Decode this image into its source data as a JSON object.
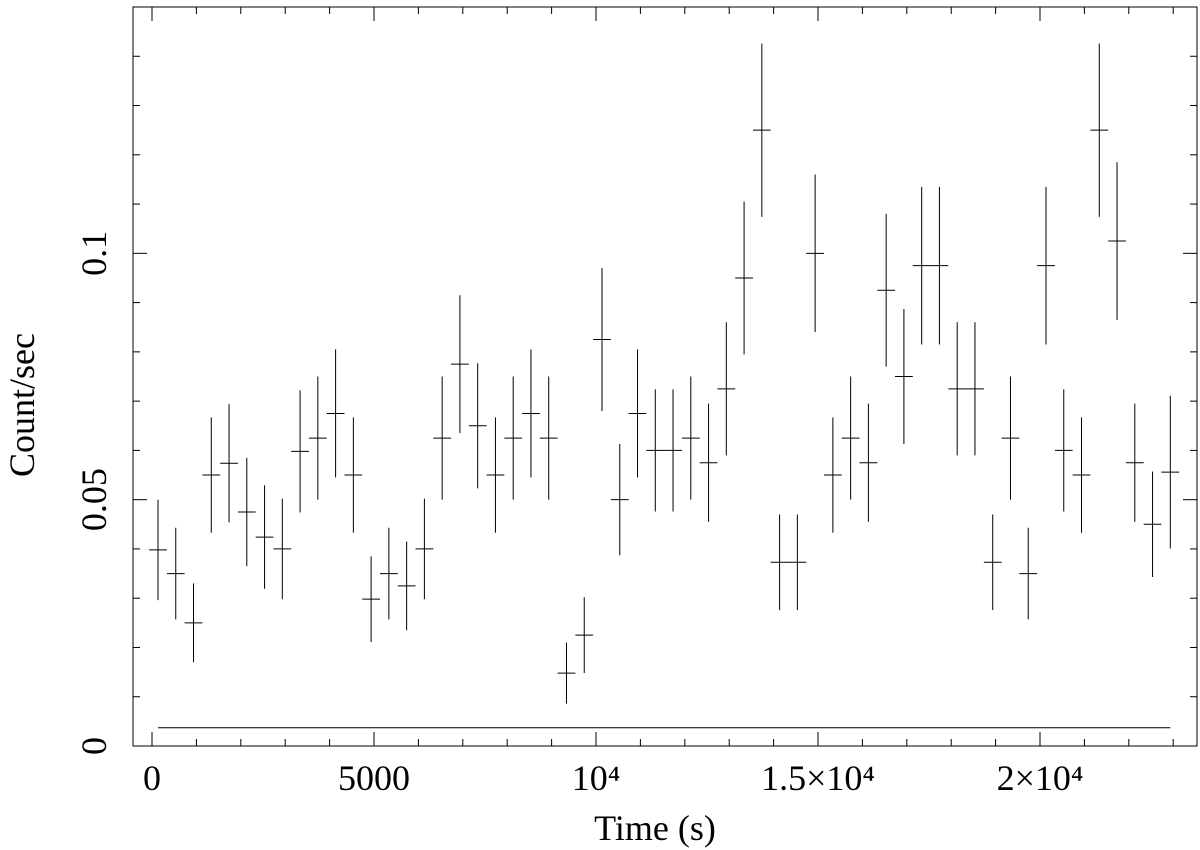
{
  "chart_data": {
    "type": "errorbar",
    "xlabel": "Time (s)",
    "ylabel": "Count/sec",
    "color": "#000000",
    "x": [
      135,
      535,
      935,
      1335,
      1735,
      2135,
      2535,
      2935,
      3335,
      3735,
      4135,
      4535,
      4935,
      5335,
      5735,
      6135,
      6535,
      6935,
      7335,
      7735,
      8135,
      8535,
      8935,
      9335,
      9735,
      10135,
      10535,
      10935,
      11335,
      11735,
      12135,
      12535,
      12935,
      13335,
      13735,
      14135,
      14535,
      14935,
      15335,
      15735,
      16135,
      16535,
      16935,
      17335,
      17735,
      18135,
      18535,
      18935,
      19335,
      19735,
      20135,
      20535,
      20935,
      21335,
      21735,
      22135,
      22535,
      22935
    ],
    "xerr": 200,
    "values": [
      0.0398,
      0.035,
      0.025,
      0.055,
      0.0574,
      0.0475,
      0.0424,
      0.04,
      0.0598,
      0.0625,
      0.0675,
      0.055,
      0.0298,
      0.035,
      0.0325,
      0.04,
      0.0625,
      0.0775,
      0.065,
      0.055,
      0.0625,
      0.0675,
      0.0625,
      0.0148,
      0.0225,
      0.0825,
      0.05,
      0.0675,
      0.06,
      0.06,
      0.0625,
      0.0575,
      0.0725,
      0.095,
      0.125,
      0.0373,
      0.0373,
      0.1,
      0.055,
      0.0625,
      0.0575,
      0.0925,
      0.075,
      0.0975,
      0.0975,
      0.0725,
      0.0725,
      0.0373,
      0.0625,
      0.035,
      0.0975,
      0.06,
      0.055,
      0.125,
      0.1025,
      0.0575,
      0.045,
      0.0556
    ],
    "errors": [
      0.0102,
      0.0093,
      0.008,
      0.0117,
      0.012,
      0.011,
      0.0105,
      0.0102,
      0.0124,
      0.0125,
      0.013,
      0.0117,
      0.0087,
      0.0093,
      0.009,
      0.0102,
      0.0125,
      0.014,
      0.0127,
      0.0117,
      0.0125,
      0.013,
      0.0125,
      0.0062,
      0.0077,
      0.0145,
      0.0113,
      0.013,
      0.0124,
      0.0124,
      0.0125,
      0.012,
      0.0135,
      0.0155,
      0.0176,
      0.0097,
      0.0097,
      0.016,
      0.0117,
      0.0125,
      0.012,
      0.0155,
      0.0137,
      0.016,
      0.016,
      0.0135,
      0.0135,
      0.0097,
      0.0125,
      0.0093,
      0.016,
      0.0124,
      0.0117,
      0.0176,
      0.016,
      0.012,
      0.0107,
      0.0155
    ],
    "baseline": {
      "x": [
        135,
        22935
      ],
      "values": [
        0.0037,
        0.0037
      ]
    },
    "xlim": [
      -428,
      23536
    ],
    "ylim": [
      0,
      0.15
    ],
    "xticks": [
      0,
      5000,
      {
        "value": 10000,
        "label": "10⁴"
      },
      {
        "value": 15000,
        "label": "1.5×10⁴"
      },
      {
        "value": 20000,
        "label": "2×10⁴"
      }
    ],
    "xminor": [
      1000,
      2000,
      3000,
      4000,
      6000,
      7000,
      8000,
      9000,
      11000,
      12000,
      13000,
      14000,
      16000,
      17000,
      18000,
      19000,
      21000,
      22000,
      23000
    ],
    "yticks": [
      0,
      0.05,
      0.1
    ],
    "yminor": [
      0.01,
      0.02,
      0.03,
      0.04,
      0.06,
      0.07,
      0.08,
      0.09,
      0.11,
      0.12,
      0.13,
      0.14
    ]
  }
}
